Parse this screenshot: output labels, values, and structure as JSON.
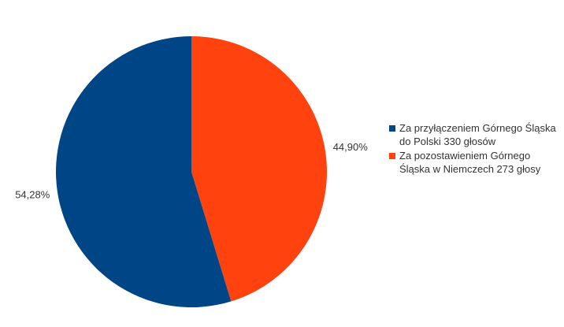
{
  "chart_data": {
    "type": "pie",
    "categories": [
      "Za przyłączeniem Górnego Śląska do Polski 330 głosów",
      "Za pozostawieniem Górnego Śląska w Niemczech 273 głosy"
    ],
    "values": [
      54.28,
      44.9
    ],
    "value_labels": [
      "54,28%",
      "44,90%"
    ],
    "colors": [
      "#004586",
      "#ff420e"
    ],
    "legend": "right"
  }
}
